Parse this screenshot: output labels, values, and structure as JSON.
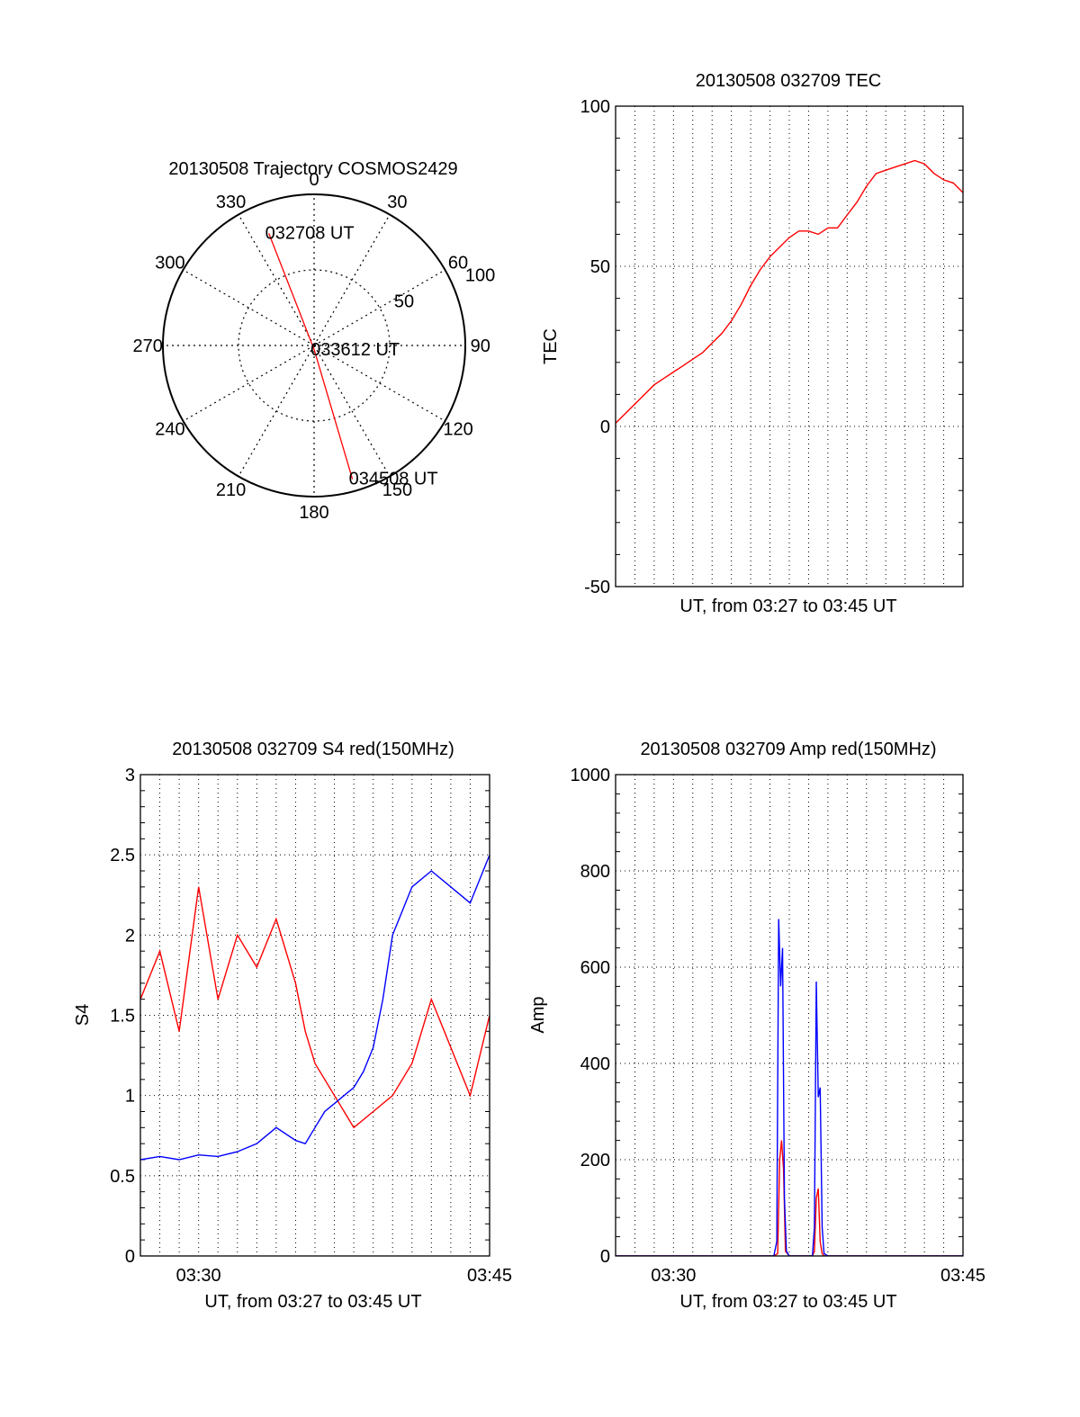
{
  "colors": {
    "red": "#ff0000",
    "blue": "#0000ff",
    "axis": "#000000"
  },
  "chart_data": [
    {
      "id": "polar",
      "type": "polar",
      "title": "20130508 Trajectory COSMOS2429",
      "azimuth_labels": [
        "0",
        "30",
        "60",
        "90",
        "120",
        "150",
        "180",
        "210",
        "240",
        "270",
        "300",
        "330"
      ],
      "radial_ticks": [
        {
          "value": 50,
          "label": "50"
        },
        {
          "value": 100,
          "label": "100"
        }
      ],
      "rmax": 100,
      "trajectory": {
        "color": "red",
        "points": [
          {
            "az": 338,
            "r": 80
          },
          {
            "az": 178,
            "r": 3
          },
          {
            "az": 164,
            "r": 92
          }
        ]
      },
      "annotations": [
        {
          "text": "032708 UT",
          "az": 338,
          "r": 80
        },
        {
          "text": "033612 UT",
          "az": 178,
          "r": 3
        },
        {
          "text": "034508 UT",
          "az": 164,
          "r": 92
        }
      ]
    },
    {
      "id": "tec",
      "type": "line",
      "title": "20130508 032709 TEC",
      "xlabel": "UT, from 03:27 to 03:45 UT",
      "ylabel": "TEC",
      "xlim": [
        0,
        18
      ],
      "ylim": [
        -50,
        100
      ],
      "yticks": [
        -50,
        0,
        50,
        100
      ],
      "xticks": [],
      "grid": true,
      "series": [
        {
          "color": "red",
          "x": [
            0,
            0.5,
            1,
            1.5,
            2,
            2.5,
            3,
            3.5,
            4,
            4.5,
            5,
            5.5,
            6,
            6.5,
            7,
            7.5,
            8,
            8.5,
            9,
            9.5,
            10,
            10.5,
            11,
            11.5,
            12,
            12.5,
            13,
            13.5,
            14,
            14.5,
            15,
            15.5,
            16,
            16.5,
            17,
            17.5,
            18
          ],
          "y": [
            1,
            4,
            7,
            10,
            13,
            15,
            17,
            19,
            21,
            23,
            26,
            29,
            33,
            38,
            44,
            49,
            53,
            56,
            59,
            61,
            61,
            60,
            62,
            62,
            66,
            70,
            75,
            79,
            80,
            81,
            82,
            83,
            82,
            79,
            77,
            76,
            73
          ]
        }
      ]
    },
    {
      "id": "s4",
      "type": "line",
      "title": "20130508 032709 S4 red(150MHz)",
      "xlabel": "UT, from 03:27 to 03:45 UT",
      "ylabel": "S4",
      "xlim": [
        0,
        18
      ],
      "ylim": [
        0,
        3
      ],
      "yticks": [
        0,
        0.5,
        1,
        1.5,
        2,
        2.5,
        3
      ],
      "ytick_labels": [
        "0",
        "0.5",
        "1",
        "1.5",
        "2",
        "2.5",
        "3"
      ],
      "xticks": [
        {
          "value": 3,
          "label": "03:30"
        },
        {
          "value": 18,
          "label": "03:45"
        }
      ],
      "grid": true,
      "series": [
        {
          "color": "red",
          "x": [
            0,
            1,
            2,
            3,
            4,
            5,
            6,
            7,
            8,
            8.5,
            9,
            10,
            11,
            12,
            13,
            14,
            15,
            16,
            17,
            18
          ],
          "y": [
            1.6,
            1.9,
            1.4,
            2.3,
            1.6,
            2.0,
            1.8,
            2.1,
            1.7,
            1.4,
            1.2,
            1.0,
            0.8,
            0.9,
            1.0,
            1.2,
            1.6,
            1.3,
            1.0,
            1.5
          ]
        },
        {
          "color": "blue",
          "x": [
            0,
            1,
            2,
            3,
            4,
            5,
            6,
            7,
            8,
            8.5,
            9,
            9.5,
            10,
            10.5,
            11,
            11.5,
            12,
            12.5,
            13,
            14,
            15,
            16,
            17,
            18
          ],
          "y": [
            0.6,
            0.62,
            0.6,
            0.63,
            0.62,
            0.65,
            0.7,
            0.8,
            0.72,
            0.7,
            0.8,
            0.9,
            0.95,
            1.0,
            1.05,
            1.15,
            1.3,
            1.6,
            2.0,
            2.3,
            2.4,
            2.3,
            2.2,
            2.5
          ]
        }
      ]
    },
    {
      "id": "amp",
      "type": "line",
      "title": "20130508 032709 Amp red(150MHz)",
      "xlabel": "UT, from 03:27 to 03:45 UT",
      "ylabel": "Amp",
      "xlim": [
        0,
        18
      ],
      "ylim": [
        0,
        1000
      ],
      "yticks": [
        0,
        200,
        400,
        600,
        800,
        1000
      ],
      "xticks": [
        {
          "value": 3,
          "label": "03:30"
        },
        {
          "value": 18,
          "label": "03:45"
        }
      ],
      "grid": true,
      "series": [
        {
          "color": "red",
          "x": [
            0,
            8.2,
            8.4,
            8.5,
            8.6,
            8.7,
            8.8,
            9.0,
            10.2,
            10.3,
            10.4,
            10.5,
            10.6,
            10.7,
            10.8,
            11.0,
            18
          ],
          "y": [
            0,
            0,
            5,
            200,
            240,
            180,
            10,
            0,
            0,
            10,
            120,
            140,
            30,
            5,
            0,
            0,
            0
          ]
        },
        {
          "color": "blue",
          "x": [
            0,
            8.2,
            8.35,
            8.45,
            8.55,
            8.65,
            8.75,
            8.85,
            9.0,
            10.2,
            10.3,
            10.4,
            10.5,
            10.6,
            10.7,
            10.8,
            11.0,
            18
          ],
          "y": [
            0,
            0,
            30,
            700,
            560,
            640,
            120,
            10,
            0,
            0,
            60,
            570,
            330,
            350,
            60,
            5,
            0,
            0
          ]
        }
      ]
    }
  ]
}
